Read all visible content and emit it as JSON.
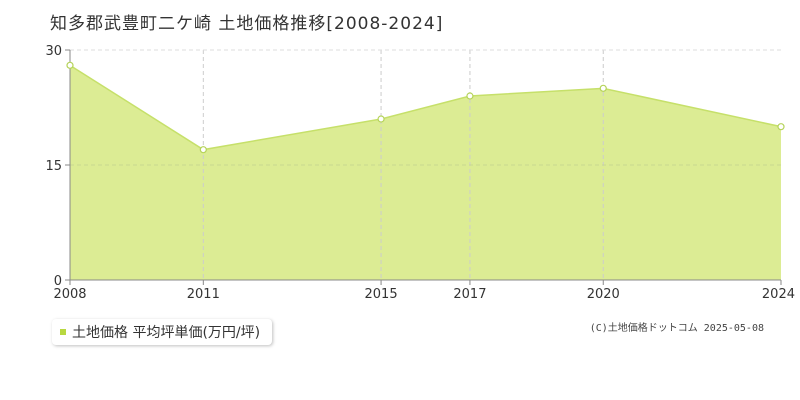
{
  "title": "知多郡武豊町二ケ崎 土地価格推移[2008-2024]",
  "colors": {
    "fill": "#dcec94",
    "line": "#c6e06a",
    "marker_stroke": "#b5d35a",
    "grid": "#cccccc",
    "axis": "#888888",
    "legend": "#b8d840"
  },
  "legend": {
    "label": "土地価格 平均坪単価(万円/坪)"
  },
  "copyright": "(C)土地価格ドットコム 2025-05-08",
  "chart_data": {
    "type": "area",
    "title": "知多郡武豊町二ケ崎 土地価格推移[2008-2024]",
    "xlabel": "",
    "ylabel": "",
    "x": [
      2008,
      2011,
      2015,
      2017,
      2020,
      2024
    ],
    "series": [
      {
        "name": "土地価格 平均坪単価(万円/坪)",
        "values": [
          28,
          17,
          21,
          24,
          25,
          20
        ]
      }
    ],
    "xlim": [
      2008,
      2024
    ],
    "ylim": [
      0,
      30
    ],
    "y_ticks": [
      0,
      15,
      30
    ],
    "x_ticks": [
      2008,
      2011,
      2015,
      2017,
      2020,
      2024
    ],
    "grid": true,
    "legend_position": "bottom-left"
  }
}
